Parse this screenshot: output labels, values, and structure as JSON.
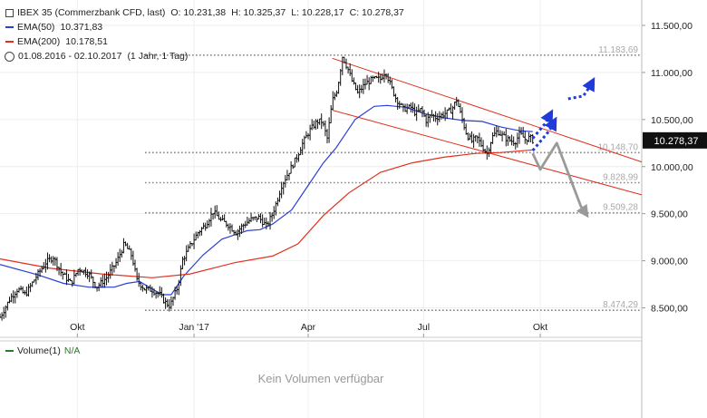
{
  "chart_data": {
    "type": "line",
    "symbol_label": "IBEX 35 (Commerzbank CFD, last)",
    "ohlc": {
      "o": "O: 10.231,38",
      "h": "H: 10.325,37",
      "l": "L: 10.228,17",
      "c": "C: 10.278,37"
    },
    "period_text": "01.08.2016 - 02.10.2017",
    "interval_text": "(1 Jahr, 1 Tag)",
    "ylim": [
      8200,
      11500
    ],
    "y_ticks": [
      {
        "v": 8500,
        "label": "8.500,00"
      },
      {
        "v": 9000,
        "label": "9.000,00"
      },
      {
        "v": 9500,
        "label": "9.500,00"
      },
      {
        "v": 10000,
        "label": "10.000,00"
      },
      {
        "v": 10500,
        "label": "10.500,00"
      },
      {
        "v": 11000,
        "label": "11.000,00"
      },
      {
        "v": 11500,
        "label": "11.500,00"
      }
    ],
    "x_ticks": [
      {
        "d": 61,
        "label": "Okt"
      },
      {
        "d": 153,
        "label": "Jan '17"
      },
      {
        "d": 243,
        "label": "Apr"
      },
      {
        "d": 334,
        "label": "Jul"
      },
      {
        "d": 426,
        "label": "Okt"
      }
    ],
    "x_range": [
      0,
      506
    ],
    "last_value": {
      "v": 10278.37,
      "label": "10.278,37"
    },
    "levels": [
      {
        "v": 11183.69,
        "label": "11.183,69"
      },
      {
        "v": 10148.7,
        "label": "10.148,70"
      },
      {
        "v": 9828.99,
        "label": "9.828,99"
      },
      {
        "v": 9509.28,
        "label": "9.509,28"
      },
      {
        "v": 8474.29,
        "label": "8.474,29"
      }
    ],
    "series": [
      {
        "name": "EMA(50)",
        "value_label": "10.371,83",
        "color": "#2b3fd6",
        "points": [
          [
            0,
            8960
          ],
          [
            30,
            8850
          ],
          [
            50,
            8760
          ],
          [
            70,
            8720
          ],
          [
            90,
            8720
          ],
          [
            100,
            8760
          ],
          [
            110,
            8780
          ],
          [
            120,
            8700
          ],
          [
            128,
            8640
          ],
          [
            135,
            8640
          ],
          [
            145,
            8840
          ],
          [
            160,
            9060
          ],
          [
            175,
            9230
          ],
          [
            195,
            9320
          ],
          [
            205,
            9330
          ],
          [
            215,
            9390
          ],
          [
            230,
            9540
          ],
          [
            243,
            9800
          ],
          [
            255,
            10040
          ],
          [
            265,
            10200
          ],
          [
            280,
            10500
          ],
          [
            295,
            10640
          ],
          [
            305,
            10650
          ],
          [
            320,
            10630
          ],
          [
            335,
            10560
          ],
          [
            350,
            10520
          ],
          [
            365,
            10490
          ],
          [
            380,
            10480
          ],
          [
            395,
            10420
          ],
          [
            410,
            10380
          ],
          [
            420,
            10372
          ]
        ]
      },
      {
        "name": "EMA(200)",
        "value_label": "10.178,51",
        "color": "#e0301e",
        "points": [
          [
            0,
            9020
          ],
          [
            40,
            8920
          ],
          [
            80,
            8860
          ],
          [
            120,
            8820
          ],
          [
            150,
            8860
          ],
          [
            185,
            8980
          ],
          [
            215,
            9050
          ],
          [
            235,
            9180
          ],
          [
            255,
            9480
          ],
          [
            275,
            9720
          ],
          [
            300,
            9940
          ],
          [
            325,
            10040
          ],
          [
            350,
            10100
          ],
          [
            375,
            10140
          ],
          [
            395,
            10150
          ],
          [
            420,
            10178
          ]
        ]
      }
    ],
    "price_path": [
      [
        0,
        8400
      ],
      [
        8,
        8600
      ],
      [
        14,
        8700
      ],
      [
        20,
        8640
      ],
      [
        28,
        8820
      ],
      [
        36,
        8980
      ],
      [
        42,
        9040
      ],
      [
        48,
        8880
      ],
      [
        56,
        8760
      ],
      [
        62,
        8920
      ],
      [
        70,
        8860
      ],
      [
        76,
        8720
      ],
      [
        84,
        8820
      ],
      [
        92,
        8990
      ],
      [
        98,
        9180
      ],
      [
        104,
        9050
      ],
      [
        108,
        8790
      ],
      [
        114,
        8700
      ],
      [
        120,
        8690
      ],
      [
        126,
        8640
      ],
      [
        130,
        8560
      ],
      [
        134,
        8520
      ],
      [
        140,
        8720
      ],
      [
        144,
        9010
      ],
      [
        150,
        9160
      ],
      [
        156,
        9300
      ],
      [
        162,
        9380
      ],
      [
        168,
        9520
      ],
      [
        174,
        9430
      ],
      [
        180,
        9380
      ],
      [
        186,
        9300
      ],
      [
        192,
        9380
      ],
      [
        198,
        9440
      ],
      [
        204,
        9460
      ],
      [
        210,
        9370
      ],
      [
        214,
        9470
      ],
      [
        218,
        9620
      ],
      [
        222,
        9800
      ],
      [
        228,
        9950
      ],
      [
        234,
        10100
      ],
      [
        238,
        10230
      ],
      [
        244,
        10380
      ],
      [
        250,
        10480
      ],
      [
        254,
        10480
      ],
      [
        258,
        10300
      ],
      [
        262,
        10700
      ],
      [
        266,
        10820
      ],
      [
        270,
        11170
      ],
      [
        274,
        11050
      ],
      [
        278,
        10890
      ],
      [
        282,
        10780
      ],
      [
        288,
        10880
      ],
      [
        294,
        10930
      ],
      [
        300,
        10930
      ],
      [
        304,
        11020
      ],
      [
        308,
        10860
      ],
      [
        312,
        10730
      ],
      [
        318,
        10610
      ],
      [
        324,
        10630
      ],
      [
        328,
        10560
      ],
      [
        332,
        10610
      ],
      [
        336,
        10490
      ],
      [
        340,
        10550
      ],
      [
        344,
        10520
      ],
      [
        350,
        10560
      ],
      [
        356,
        10600
      ],
      [
        360,
        10710
      ],
      [
        364,
        10520
      ],
      [
        368,
        10340
      ],
      [
        372,
        10270
      ],
      [
        376,
        10310
      ],
      [
        380,
        10220
      ],
      [
        384,
        10140
      ],
      [
        388,
        10310
      ],
      [
        392,
        10380
      ],
      [
        396,
        10330
      ],
      [
        400,
        10290
      ],
      [
        406,
        10260
      ],
      [
        410,
        10350
      ],
      [
        414,
        10290
      ],
      [
        418,
        10310
      ],
      [
        420,
        10278
      ]
    ],
    "channel": {
      "color": "#e0301e",
      "upper": [
        [
          262,
          11150
        ],
        [
          433,
          10380
        ],
        [
          506,
          10050
        ]
      ],
      "lower": [
        [
          262,
          10600
        ],
        [
          506,
          9700
        ]
      ]
    },
    "scenarios": [
      {
        "color": "#1f3bdc",
        "points": [
          [
            420,
            10300
          ],
          [
            430,
            10460
          ]
        ],
        "head": [
          434,
          10560
        ]
      },
      {
        "color": "#1f3bdc",
        "points": [
          [
            420,
            10170
          ],
          [
            433,
            10380
          ]
        ],
        "head": [
          437,
          10480
        ]
      },
      {
        "color": "#1f3bdc",
        "points": [
          [
            448,
            10720
          ],
          [
            460,
            10750
          ],
          [
            465,
            10850
          ]
        ],
        "head": [
          467,
          10900
        ]
      },
      {
        "color": "#9a9a9a",
        "points": [
          [
            420,
            10140
          ],
          [
            426,
            9970
          ],
          [
            439,
            10250
          ],
          [
            458,
            9580
          ]
        ],
        "head": [
          462,
          9500
        ]
      }
    ],
    "volume_label": "Volume(1)",
    "volume_value": "N/A",
    "volume_note": "Kein Volumen verfügbar"
  }
}
